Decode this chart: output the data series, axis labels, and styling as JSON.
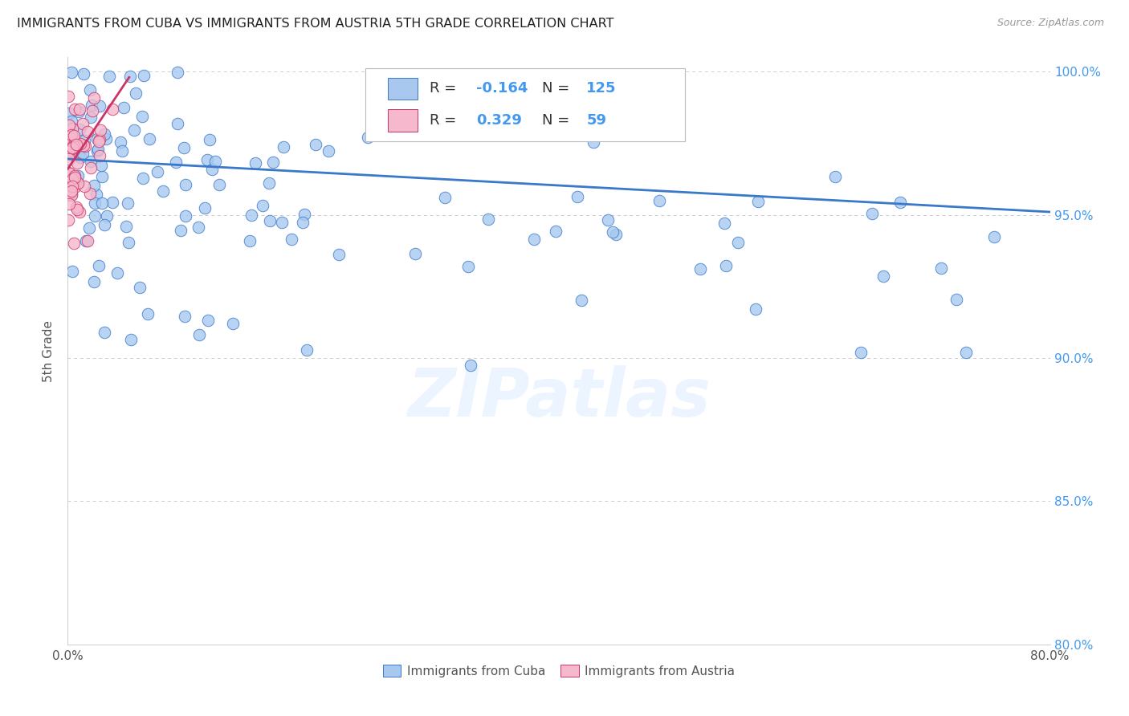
{
  "title": "IMMIGRANTS FROM CUBA VS IMMIGRANTS FROM AUSTRIA 5TH GRADE CORRELATION CHART",
  "source": "Source: ZipAtlas.com",
  "ylabel": "5th Grade",
  "xlim": [
    0.0,
    0.8
  ],
  "ylim": [
    0.8,
    1.005
  ],
  "xtick_vals": [
    0.0,
    0.1,
    0.2,
    0.3,
    0.4,
    0.5,
    0.6,
    0.7,
    0.8
  ],
  "xticklabels": [
    "0.0%",
    "",
    "",
    "",
    "",
    "",
    "",
    "",
    "80.0%"
  ],
  "ytick_vals": [
    0.8,
    0.85,
    0.9,
    0.95,
    1.0
  ],
  "yticklabels_right": [
    "80.0%",
    "85.0%",
    "90.0%",
    "95.0%",
    "100.0%"
  ],
  "cuba_color": "#a8c8f0",
  "austria_color": "#f5b8cc",
  "cuba_R": -0.164,
  "cuba_N": 125,
  "austria_R": 0.329,
  "austria_N": 59,
  "trend_cuba_color": "#3a78c9",
  "trend_austria_color": "#cc3366",
  "watermark": "ZIPatlas",
  "legend_label_cuba": "Immigrants from Cuba",
  "legend_label_austria": "Immigrants from Austria",
  "background_color": "#ffffff",
  "grid_color": "#cccccc",
  "right_axis_color": "#4499ee",
  "cuba_trend_x0": 0.0,
  "cuba_trend_y0": 0.9695,
  "cuba_trend_x1": 0.8,
  "cuba_trend_y1": 0.951,
  "austria_trend_x0": 0.0,
  "austria_trend_y0": 0.966,
  "austria_trend_x1": 0.05,
  "austria_trend_y1": 0.998
}
